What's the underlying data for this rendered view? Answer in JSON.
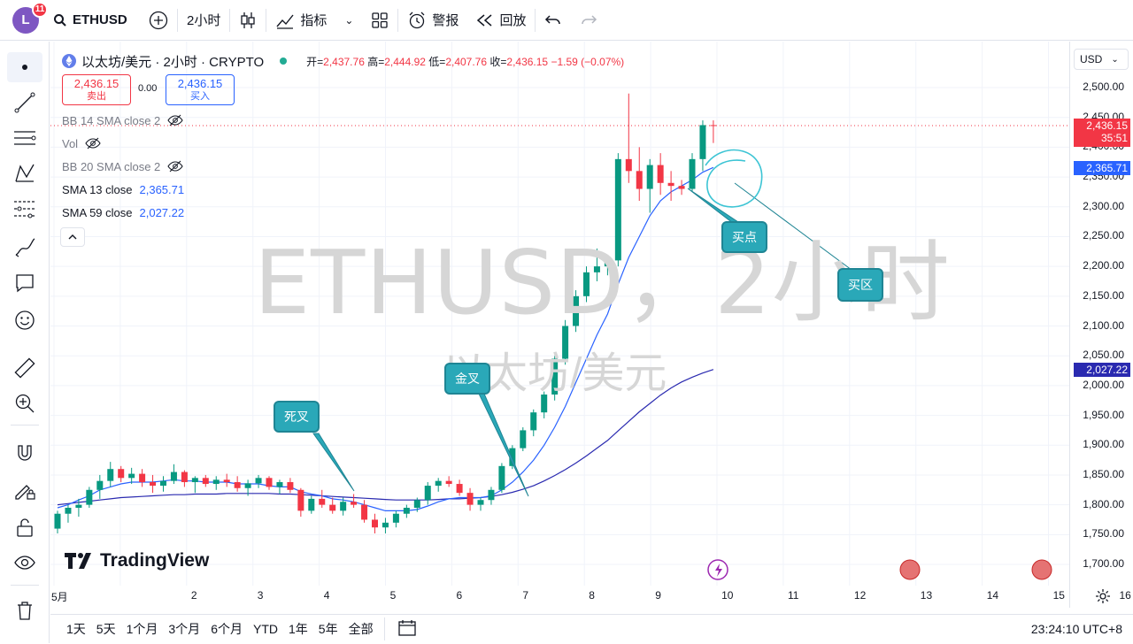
{
  "topbar": {
    "avatar_letter": "L",
    "notif_count": "11",
    "symbol": "ETHUSD",
    "interval": "2小时",
    "indicators_label": "指标",
    "alert_label": "警报",
    "replay_label": "回放"
  },
  "legend": {
    "title": "以太坊/美元 · 2小时 · CRYPTO",
    "open_label": "开=",
    "open": "2,437.76",
    "high_label": "高=",
    "high": "2,444.92",
    "low_label": "低=",
    "low": "2,407.76",
    "close_label": "收=",
    "close": "2,436.15",
    "change": "−1.59 (−0.07%)",
    "sell_price": "2,436.15",
    "sell_label": "卖出",
    "spread": "0.00",
    "buy_price": "2,436.15",
    "buy_label": "买入"
  },
  "indicators": [
    {
      "name": "BB 14 SMA close 2",
      "value": ""
    },
    {
      "name": "Vol",
      "value": ""
    },
    {
      "name": "BB 20 SMA close 2",
      "value": ""
    },
    {
      "name": "SMA 13 close",
      "value": "2,365.71"
    },
    {
      "name": "SMA 59 close",
      "value": "2,027.22"
    }
  ],
  "watermark": {
    "line1": "ETHUSD，2小时",
    "line2": "以太坊/美元"
  },
  "brand": "TradingView",
  "callouts": {
    "death": "死叉",
    "golden": "金叉",
    "buy_point": "买点",
    "buy_zone": "买区"
  },
  "price_axis": {
    "currency": "USD",
    "ticks": [
      "2,500.00",
      "2,450.00",
      "2,400.00",
      "2,350.00",
      "2,300.00",
      "2,250.00",
      "2,200.00",
      "2,150.00",
      "2,100.00",
      "2,050.00",
      "2,000.00",
      "1,950.00",
      "1,900.00",
      "1,850.00",
      "1,800.00",
      "1,750.00",
      "1,700.00"
    ],
    "last_price": "2,436.15",
    "countdown": "35:51",
    "sma13_tag": "2,365.71",
    "sma59_tag": "2,027.22"
  },
  "time_axis": [
    "5月",
    "2",
    "3",
    "4",
    "5",
    "6",
    "7",
    "8",
    "9",
    "10",
    "11",
    "12",
    "13",
    "14",
    "15",
    "16"
  ],
  "bottombar": {
    "ranges": [
      "1天",
      "5天",
      "1个月",
      "3个月",
      "6个月",
      "YTD",
      "1年",
      "5年",
      "全部"
    ],
    "clock": "23:24:10 UTC+8"
  },
  "colors": {
    "up": "#089981",
    "down": "#f23645",
    "sma13": "#2962ff",
    "sma59": "#2a2ab0",
    "callout": "#2aa8b8"
  },
  "chart_data": {
    "type": "candlestick",
    "title": "以太坊/美元 · 2小时 · CRYPTO",
    "ylim": [
      1700,
      2500
    ],
    "x_start": "5月1日",
    "candles": [
      [
        1760,
        1790,
        1752,
        1785
      ],
      [
        1785,
        1800,
        1770,
        1795
      ],
      [
        1795,
        1810,
        1780,
        1800
      ],
      [
        1800,
        1830,
        1795,
        1825
      ],
      [
        1825,
        1850,
        1810,
        1840
      ],
      [
        1840,
        1872,
        1830,
        1860
      ],
      [
        1860,
        1865,
        1838,
        1845
      ],
      [
        1845,
        1862,
        1835,
        1852
      ],
      [
        1852,
        1860,
        1830,
        1838
      ],
      [
        1838,
        1850,
        1820,
        1832
      ],
      [
        1832,
        1848,
        1822,
        1840
      ],
      [
        1840,
        1868,
        1835,
        1855
      ],
      [
        1855,
        1858,
        1830,
        1838
      ],
      [
        1838,
        1848,
        1820,
        1845
      ],
      [
        1845,
        1850,
        1830,
        1835
      ],
      [
        1835,
        1848,
        1825,
        1842
      ],
      [
        1842,
        1852,
        1830,
        1838
      ],
      [
        1838,
        1848,
        1822,
        1828
      ],
      [
        1828,
        1842,
        1815,
        1836
      ],
      [
        1836,
        1850,
        1828,
        1845
      ],
      [
        1845,
        1848,
        1825,
        1830
      ],
      [
        1830,
        1842,
        1818,
        1838
      ],
      [
        1838,
        1845,
        1820,
        1825
      ],
      [
        1825,
        1828,
        1780,
        1790
      ],
      [
        1790,
        1815,
        1785,
        1810
      ],
      [
        1810,
        1825,
        1795,
        1800
      ],
      [
        1800,
        1812,
        1785,
        1790
      ],
      [
        1790,
        1812,
        1782,
        1805
      ],
      [
        1805,
        1818,
        1795,
        1800
      ],
      [
        1800,
        1808,
        1770,
        1775
      ],
      [
        1775,
        1785,
        1752,
        1762
      ],
      [
        1762,
        1778,
        1752,
        1770
      ],
      [
        1770,
        1790,
        1762,
        1785
      ],
      [
        1785,
        1800,
        1778,
        1795
      ],
      [
        1795,
        1812,
        1788,
        1808
      ],
      [
        1808,
        1838,
        1800,
        1832
      ],
      [
        1832,
        1845,
        1822,
        1840
      ],
      [
        1840,
        1848,
        1830,
        1835
      ],
      [
        1835,
        1842,
        1815,
        1820
      ],
      [
        1820,
        1828,
        1790,
        1800
      ],
      [
        1800,
        1812,
        1790,
        1808
      ],
      [
        1808,
        1830,
        1800,
        1825
      ],
      [
        1825,
        1870,
        1820,
        1865
      ],
      [
        1865,
        1900,
        1860,
        1895
      ],
      [
        1895,
        1930,
        1890,
        1925
      ],
      [
        1925,
        1960,
        1915,
        1955
      ],
      [
        1955,
        1990,
        1945,
        1985
      ],
      [
        1985,
        2050,
        1975,
        2045
      ],
      [
        2045,
        2110,
        2035,
        2100
      ],
      [
        2100,
        2160,
        2090,
        2150
      ],
      [
        2150,
        2200,
        2140,
        2190
      ],
      [
        2190,
        2230,
        2175,
        2200
      ],
      [
        2200,
        2215,
        2185,
        2210
      ],
      [
        2210,
        2390,
        2200,
        2380
      ],
      [
        2380,
        2490,
        2340,
        2360
      ],
      [
        2360,
        2400,
        2310,
        2330
      ],
      [
        2330,
        2380,
        2290,
        2370
      ],
      [
        2370,
        2390,
        2320,
        2340
      ],
      [
        2340,
        2360,
        2310,
        2335
      ],
      [
        2335,
        2345,
        2320,
        2330
      ],
      [
        2330,
        2390,
        2325,
        2380
      ],
      [
        2380,
        2445,
        2360,
        2437
      ],
      [
        2437,
        2445,
        2407,
        2436
      ]
    ],
    "sma13": [
      1795,
      1800,
      1808,
      1815,
      1825,
      1830,
      1835,
      1838,
      1838,
      1838,
      1840,
      1842,
      1840,
      1840,
      1838,
      1838,
      1838,
      1835,
      1835,
      1835,
      1832,
      1830,
      1830,
      1822,
      1818,
      1815,
      1810,
      1808,
      1805,
      1800,
      1795,
      1790,
      1790,
      1790,
      1792,
      1798,
      1805,
      1810,
      1812,
      1812,
      1812,
      1815,
      1825,
      1838,
      1855,
      1875,
      1900,
      1930,
      1965,
      2005,
      2045,
      2085,
      2120,
      2170,
      2215,
      2250,
      2285,
      2310,
      2325,
      2335,
      2345,
      2358,
      2366
    ],
    "sma59": [
      1800,
      1802,
      1804,
      1806,
      1808,
      1810,
      1812,
      1813,
      1814,
      1815,
      1816,
      1817,
      1817,
      1818,
      1818,
      1818,
      1819,
      1819,
      1819,
      1819,
      1819,
      1818,
      1818,
      1817,
      1816,
      1815,
      1814,
      1813,
      1812,
      1811,
      1810,
      1809,
      1808,
      1808,
      1808,
      1808,
      1809,
      1810,
      1810,
      1811,
      1812,
      1814,
      1817,
      1821,
      1826,
      1832,
      1840,
      1849,
      1859,
      1870,
      1882,
      1895,
      1908,
      1924,
      1940,
      1956,
      1970,
      1984,
      1996,
      2006,
      2014,
      2021,
      2027
    ]
  }
}
